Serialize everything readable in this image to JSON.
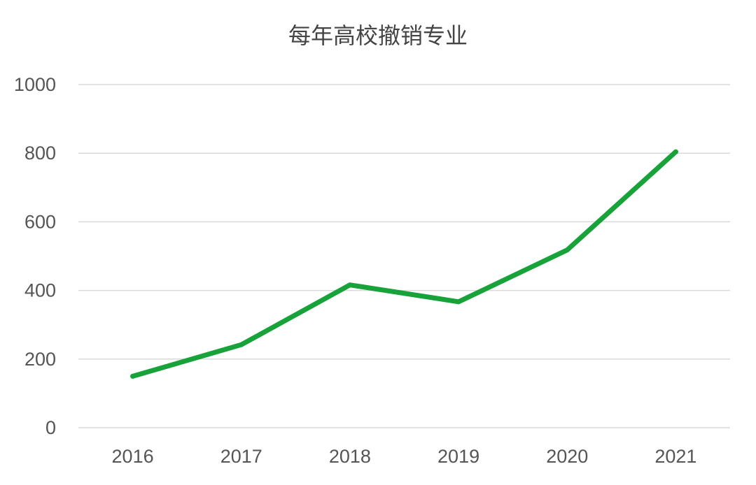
{
  "chart_data": {
    "type": "line",
    "title": "每年高校撤销专业",
    "xlabel": "",
    "ylabel": "",
    "categories": [
      "2016",
      "2017",
      "2018",
      "2019",
      "2020",
      "2021"
    ],
    "series": [
      {
        "values": [
          150,
          242,
          416,
          367,
          518,
          804
        ],
        "color": "#18a23a"
      }
    ],
    "ylim": [
      0,
      1000
    ],
    "yticks": [
      0,
      200,
      400,
      600,
      800,
      1000
    ],
    "grid": true,
    "legend": "none"
  }
}
